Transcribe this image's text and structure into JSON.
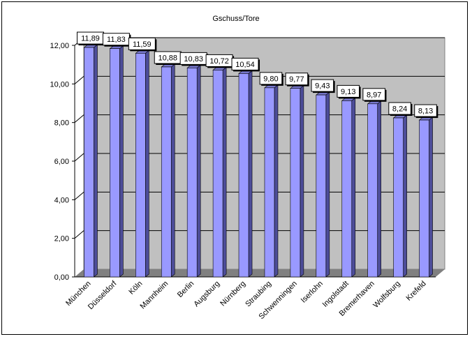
{
  "chart_data": {
    "type": "bar",
    "title": "Gschuss/Tore",
    "xlabel": "",
    "ylabel": "",
    "categories": [
      "München",
      "Düsseldorf",
      "Köln",
      "Mannheim",
      "Berlin",
      "Augsburg",
      "Nürnberg",
      "Straubing",
      "Schwenningen",
      "Iserlohn",
      "Ingolstadt",
      "Bremerhaven",
      "Wolfsburg",
      "Krefeld"
    ],
    "values": [
      11.89,
      11.83,
      11.59,
      10.88,
      10.83,
      10.72,
      10.54,
      9.8,
      9.77,
      9.43,
      9.13,
      8.97,
      8.24,
      8.13
    ],
    "value_labels": [
      "11,89",
      "11,83",
      "11,59",
      "10,88",
      "10,83",
      "10,72",
      "10,54",
      "9,80",
      "9,77",
      "9,43",
      "9,13",
      "8,97",
      "8,24",
      "8,13"
    ],
    "ylim": [
      0,
      12
    ],
    "yticks": [
      0,
      2,
      4,
      6,
      8,
      10,
      12
    ],
    "ytick_labels": [
      "0,00",
      "2,00",
      "4,00",
      "6,00",
      "8,00",
      "10,00",
      "12,00"
    ],
    "grid": true,
    "legend": "none",
    "colors": {
      "bar_front": "#9999ff",
      "bar_side": "#4d4d99",
      "bar_top": "#7777cc",
      "wall": "#c0c0c0",
      "floor": "#808080",
      "gridline": "#000000"
    }
  }
}
